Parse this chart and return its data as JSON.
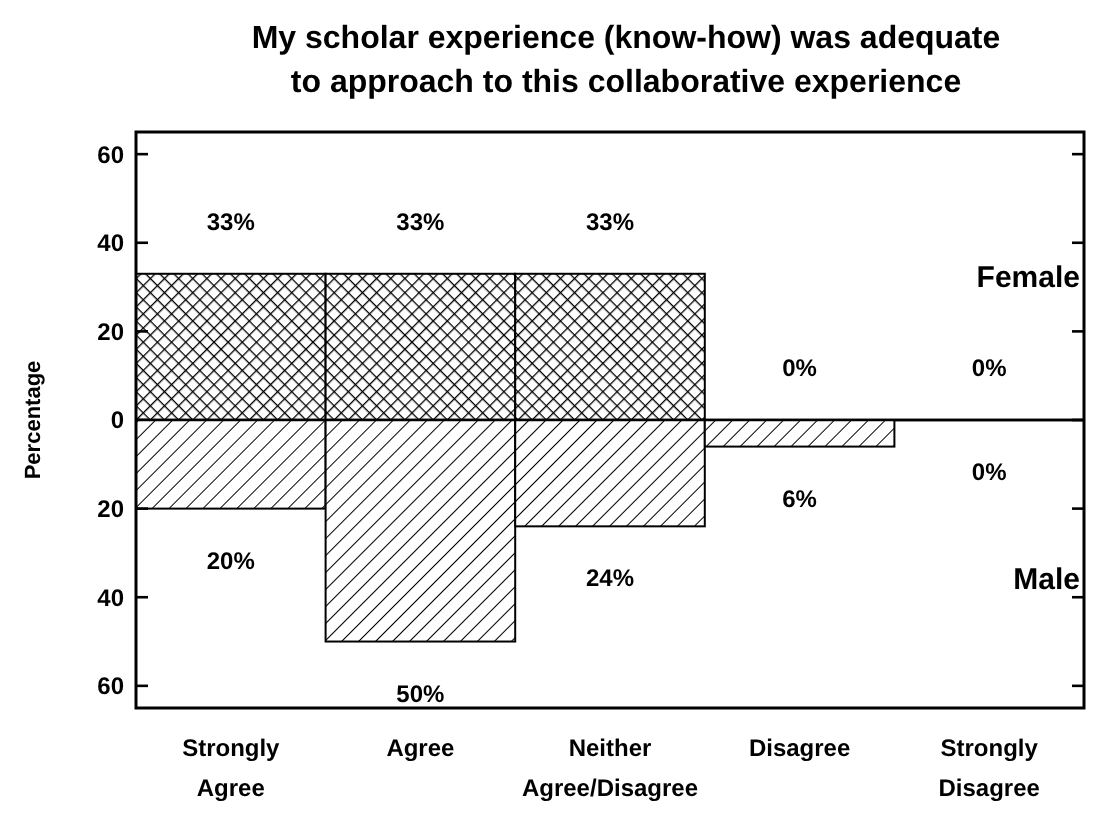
{
  "chart_data": [
    {
      "type": "bar",
      "title": "My scholar experience (know-how) was adequate\nto approach to this collaborative experience",
      "ylabel": "Percentage",
      "categories": [
        null,
        null,
        null,
        null,
        null
      ],
      "series": [
        {
          "name": "Female",
          "color": "#000000",
          "values": [
            33,
            33,
            33,
            0,
            0
          ],
          "value_labels": [
            "33%",
            "33%",
            "33%",
            "0%",
            "0%"
          ]
        }
      ],
      "ylim": [
        0,
        65
      ],
      "yticks": [
        0,
        20,
        40,
        60
      ],
      "tick_labels": "y",
      "grid": false,
      "legend": "right"
    },
    {
      "type": "bar",
      "categories": [
        "Strongly Agree",
        "Agree",
        "Neither Agree/Disagree",
        "Disagree",
        "Strongly Disagree"
      ],
      "series": [
        {
          "name": "Male",
          "color": "#000000",
          "values": [
            20,
            50,
            24,
            6,
            0
          ],
          "value_labels": [
            "20%",
            "50%",
            "24%",
            "6%",
            "0%"
          ]
        }
      ],
      "ylim": [
        65,
        0
      ],
      "yticks": [
        20,
        40,
        60
      ],
      "grid": false,
      "legend": "right"
    }
  ]
}
